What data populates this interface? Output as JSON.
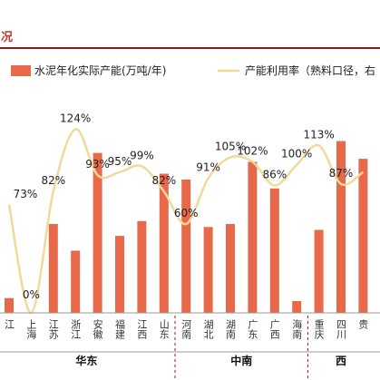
{
  "header": {
    "title": "况"
  },
  "legend": {
    "bar_label": "水泥年化实际产能(万吨/年)",
    "line_label": "产能利用率（熟料口径，右"
  },
  "colors": {
    "bar": "#E8694A",
    "line": "#F2D99A",
    "title": "#c0392b",
    "accent_line": "#8B1A1A"
  },
  "chart_data": {
    "type": "bar",
    "categories": [
      "江",
      "上海",
      "江苏",
      "浙江",
      "安徽",
      "福建",
      "江西",
      "山东",
      "河南",
      "湖北",
      "湖南",
      "广东",
      "广西",
      "海南",
      "重庆",
      "四川",
      "贵"
    ],
    "series": [
      {
        "name": "水泥年化实际产能(万吨/年)",
        "type": "bar",
        "values": [
          5,
          0,
          30,
          21,
          54,
          26,
          31,
          47,
          45,
          29,
          30,
          51,
          42,
          4,
          28,
          58,
          52
        ]
      },
      {
        "name": "产能利用率（熟料口径，右",
        "type": "line",
        "axis": "right",
        "unit": "%",
        "values": [
          73,
          0,
          82,
          124,
          93,
          95,
          99,
          82,
          60,
          91,
          105,
          102,
          86,
          100,
          113,
          87,
          95
        ]
      }
    ],
    "data_labels": [
      "73%",
      "0%",
      "82%",
      "124%",
      "93%",
      "95%",
      "99%",
      "82%",
      "60%",
      "91%",
      "105%",
      "102%",
      "86%",
      "100%",
      "113%",
      "87%",
      ""
    ],
    "regions": [
      {
        "name": "华东",
        "span": [
          0,
          7
        ]
      },
      {
        "name": "中南",
        "span": [
          8,
          13
        ]
      },
      {
        "name": "西",
        "span": [
          14,
          16
        ]
      }
    ],
    "ylim_left": [
      0,
      75
    ],
    "ylim_right": [
      0,
      150
    ],
    "grid": false,
    "legend_position": "top"
  }
}
